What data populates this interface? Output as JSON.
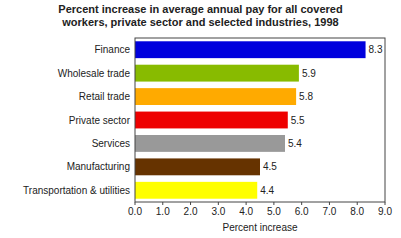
{
  "chart_data": {
    "type": "bar",
    "orientation": "horizontal",
    "title": "Percent increase in average annual pay for all covered\nworkers, private sector and selected industries, 1998",
    "categories": [
      "Finance",
      "Wholesale trade",
      "Retail trade",
      "Private sector",
      "Services",
      "Manufacturing",
      "Transportation & utilities"
    ],
    "values": [
      8.3,
      5.9,
      5.8,
      5.5,
      5.4,
      4.5,
      4.4
    ],
    "colors": [
      "#0000dd",
      "#88bb00",
      "#ffaa00",
      "#ee0000",
      "#999999",
      "#663300",
      "#ffff00"
    ],
    "xlabel": "Percent increase",
    "xlim": [
      0,
      9.0
    ],
    "xticks": [
      {
        "value": 0,
        "label": "0.0"
      },
      {
        "value": 1,
        "label": "1.0"
      },
      {
        "value": 2,
        "label": "2.0"
      },
      {
        "value": 3,
        "label": "3.0"
      },
      {
        "value": 4,
        "label": "4.0"
      },
      {
        "value": 5,
        "label": "5.0"
      },
      {
        "value": 6,
        "label": "6.0"
      },
      {
        "value": 7,
        "label": "7.0"
      },
      {
        "value": 8,
        "label": "8.0"
      },
      {
        "value": 9,
        "label": "9.0"
      }
    ],
    "data_labels": true,
    "grid": false
  }
}
